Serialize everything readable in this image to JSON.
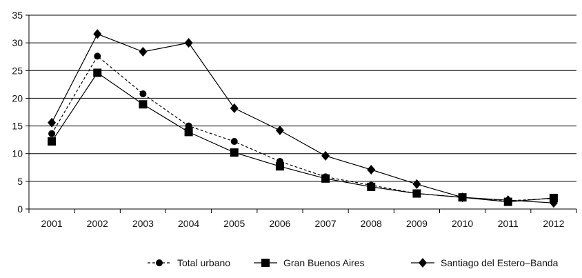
{
  "chart_data": {
    "type": "line",
    "title": "",
    "xlabel": "",
    "ylabel": "",
    "categories": [
      "2001",
      "2002",
      "2003",
      "2004",
      "2005",
      "2006",
      "2007",
      "2008",
      "2009",
      "2010",
      "2011",
      "2012"
    ],
    "ylim": [
      0,
      35
    ],
    "yticks": [
      0,
      5,
      10,
      15,
      20,
      25,
      30,
      35
    ],
    "grid": "horizontal",
    "legend_position": "bottom",
    "series": [
      {
        "name": "Total urbano",
        "marker": "circle",
        "line": "dashed",
        "values": [
          13.6,
          27.6,
          20.8,
          15.0,
          12.2,
          8.6,
          5.8,
          4.3,
          2.8,
          2.1,
          1.5,
          1.9
        ]
      },
      {
        "name": "Gran Buenos Aires",
        "marker": "square",
        "line": "solid",
        "values": [
          12.2,
          24.6,
          18.9,
          13.9,
          10.2,
          7.7,
          5.5,
          4.0,
          2.8,
          2.1,
          1.3,
          2.0
        ]
      },
      {
        "name": "Santiago del Estero–Banda",
        "marker": "diamond",
        "line": "solid",
        "values": [
          15.6,
          31.6,
          28.4,
          30.0,
          18.2,
          14.2,
          9.6,
          7.1,
          4.5,
          2.1,
          1.6,
          1.1
        ]
      }
    ]
  }
}
